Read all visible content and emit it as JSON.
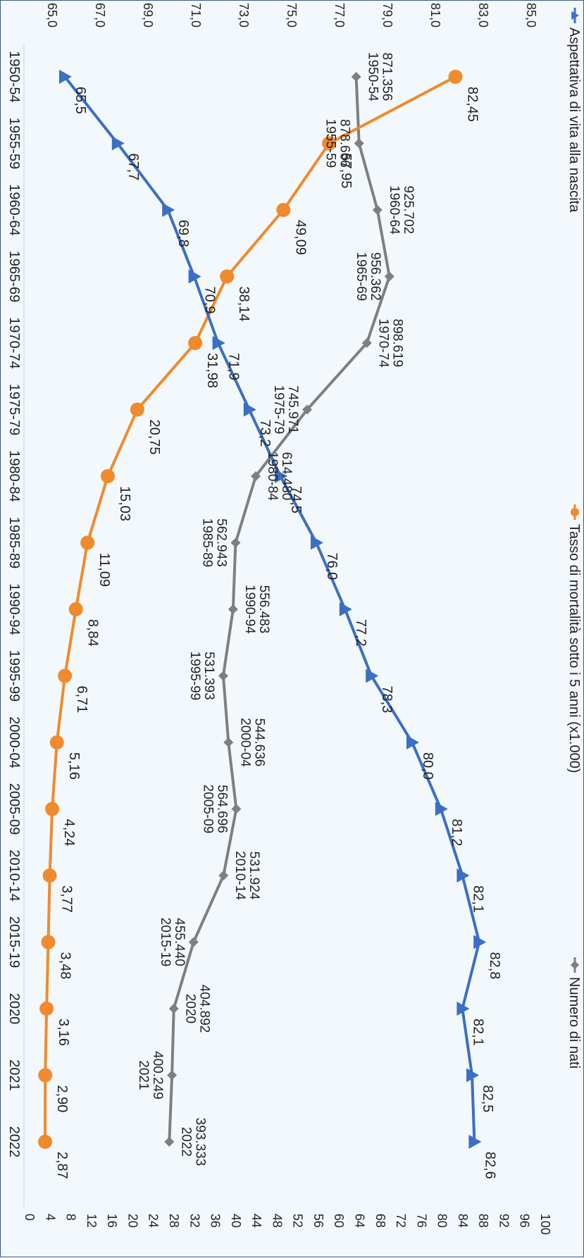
{
  "colors": {
    "life": "#3a6fc4",
    "mort": "#f08a2c",
    "births": "#7f7f7f",
    "text": "#222222",
    "axis": "#555555",
    "background": "#f3f8fd"
  },
  "chart_data": {
    "type": "line",
    "orientation": "rotated-90-clockwise",
    "categories": [
      "1950-54",
      "1955-59",
      "1960-64",
      "1965-69",
      "1970-74",
      "1975-79",
      "1980-84",
      "1985-89",
      "1990-94",
      "1995-99",
      "2000-04",
      "2005-09",
      "2010-14",
      "2015-19",
      "2020",
      "2021",
      "2022"
    ],
    "left_axis": {
      "ticks": [
        "65,0",
        "67,0",
        "69,0",
        "71,0",
        "73,0",
        "75,0",
        "77,0",
        "79,0",
        "81,0",
        "83,0",
        "85,0"
      ],
      "range": [
        65,
        85
      ]
    },
    "right_axis": {
      "ticks": [
        "0",
        "4",
        "8",
        "12",
        "16",
        "20",
        "24",
        "28",
        "32",
        "36",
        "40",
        "44",
        "48",
        "52",
        "56",
        "60",
        "64",
        "68",
        "72",
        "76",
        "80",
        "84",
        "88",
        "92",
        "96",
        "100"
      ],
      "range": [
        0,
        100
      ]
    },
    "legend_position": "top",
    "series": [
      {
        "key": "life",
        "name": "Aspettativa di vita alla nascita",
        "axis": "left",
        "marker": "triangle",
        "values": [
          65.5,
          67.7,
          69.8,
          70.9,
          71.9,
          73.2,
          74.5,
          76.0,
          77.2,
          78.3,
          80.0,
          81.2,
          82.1,
          82.8,
          82.1,
          82.5,
          82.6
        ],
        "labels": [
          "65,5",
          "67,7",
          "69,8",
          "70,9",
          "71,9",
          "73,2",
          "74,5",
          "76,0",
          "77,2",
          "78,3",
          "80,0",
          "81,2",
          "82,1",
          "82,8",
          "82,1",
          "82,5",
          "82,6"
        ]
      },
      {
        "key": "mort",
        "name": "Tasso di mortalità sotto i 5 anni (x1.000)",
        "axis": "right",
        "marker": "circle",
        "values": [
          82.45,
          57.95,
          49.09,
          38.14,
          31.98,
          20.75,
          15.03,
          11.09,
          8.84,
          6.71,
          5.16,
          4.24,
          3.77,
          3.48,
          3.16,
          2.9,
          2.87
        ],
        "labels": [
          "82,45",
          "57,95",
          "49,09",
          "38,14",
          "31,98",
          "20,75",
          "15,03",
          "11,09",
          "8,84",
          "6,71",
          "5,16",
          "4,24",
          "3,77",
          "3,48",
          "3,16",
          "2,90",
          "2,87"
        ]
      },
      {
        "key": "births",
        "name": "Numero di nati",
        "axis": "right",
        "marker": "diamond",
        "values": [
          871356,
          878666,
          925702,
          956362,
          898619,
          745971,
          614480,
          562943,
          556483,
          531393,
          544636,
          564696,
          531924,
          455440,
          404892,
          400249,
          393333
        ],
        "labels": [
          "871.356",
          "878.666",
          "925.702",
          "956.362",
          "898.619",
          "745.971",
          "614.480",
          "562.943",
          "556.483",
          "531.393",
          "544.636",
          "564.696",
          "531.924",
          "455.440",
          "404.892",
          "400.249",
          "393.333"
        ],
        "period_labels": [
          "1950-54",
          "1955-59",
          "1960-64",
          "1965-69",
          "1970-74",
          "1975-79",
          "1980-84",
          "1985-89",
          "1990-94",
          "1995-99",
          "2000-04",
          "2005-09",
          "2010-14",
          "2015-19",
          "2020",
          "2021",
          "2022"
        ]
      }
    ]
  }
}
